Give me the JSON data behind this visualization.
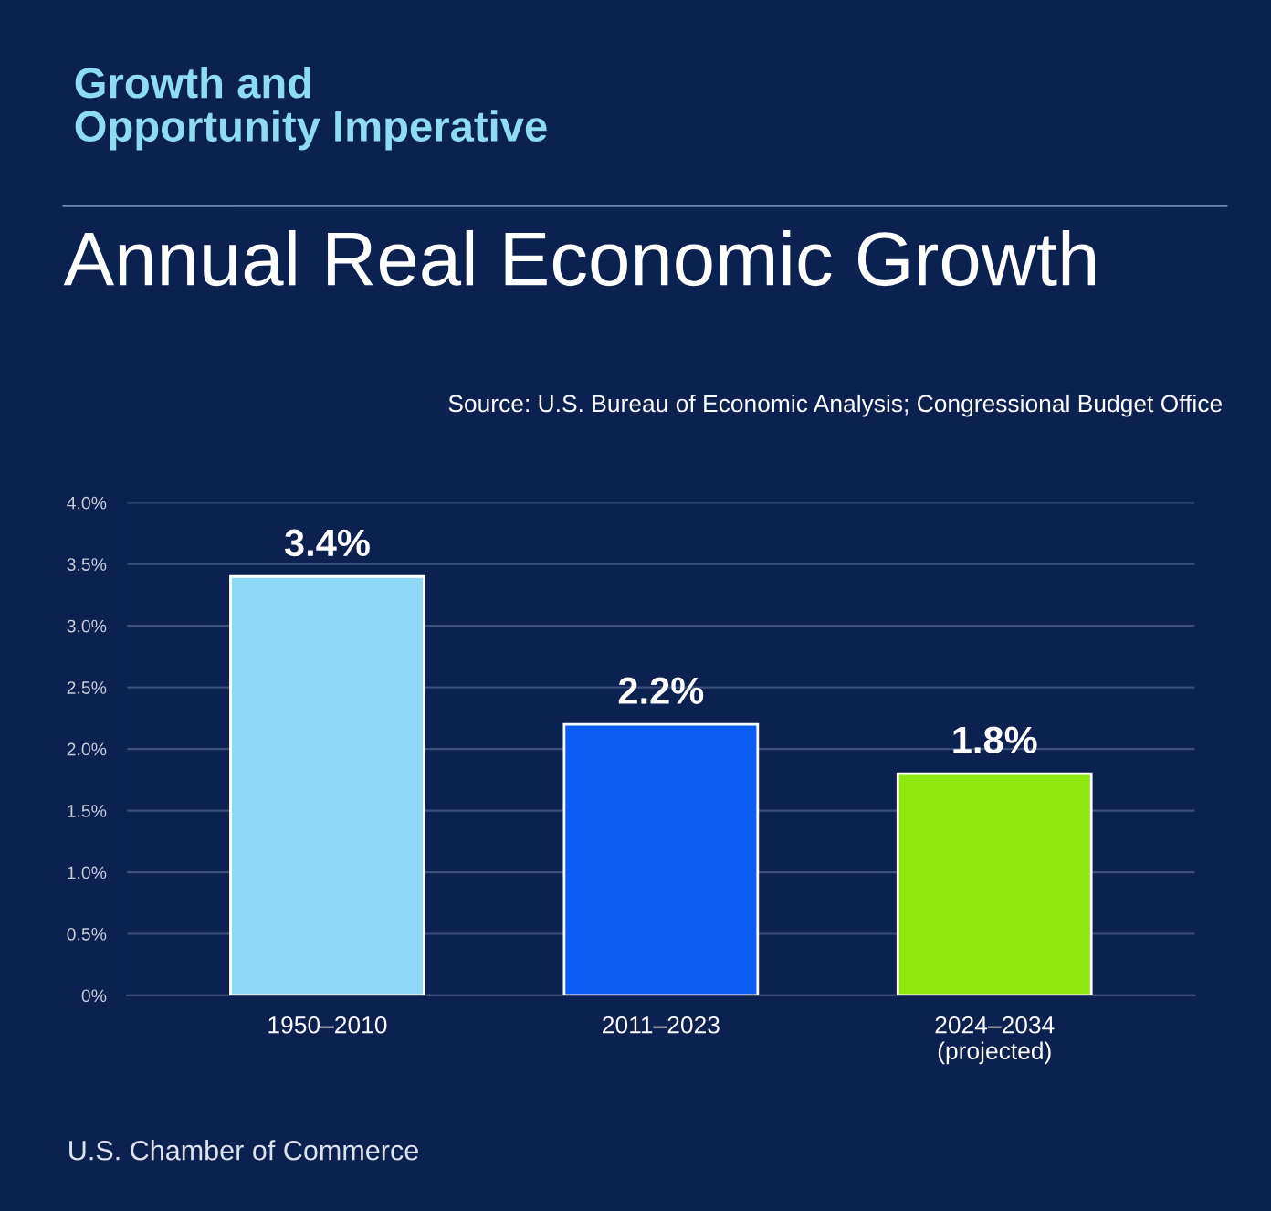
{
  "chart_data": {
    "type": "bar",
    "subtitle": "Growth and\nOpportunity Imperative",
    "title": "Annual Real Economic Growth",
    "annotations": [
      "Source: U.S. Bureau of Economic Analysis; Congressional Budget Office",
      "U.S. Chamber of Commerce"
    ],
    "categories": [
      "1950–2010",
      "2011–2023",
      "2024–2034\n(projected)"
    ],
    "values": [
      3.4,
      2.2,
      1.8
    ],
    "colors": [
      "#8ed8f8",
      "#0a5cf2",
      "#8ee810"
    ],
    "value_labels": [
      "3.4%",
      "2.2%",
      "1.8%"
    ],
    "ylim": [
      0,
      4.0
    ],
    "yticks": [
      {
        "value": 0,
        "label": "0%"
      },
      {
        "value": 0.5,
        "label": "0.5%"
      },
      {
        "value": 1.0,
        "label": "1.0%"
      },
      {
        "value": 1.5,
        "label": "1.5%"
      },
      {
        "value": 2.0,
        "label": "2.0%"
      },
      {
        "value": 2.5,
        "label": "2.5%"
      },
      {
        "value": 3.0,
        "label": "3.0%"
      },
      {
        "value": 3.5,
        "label": "3.5%"
      },
      {
        "value": 4.0,
        "label": "4.0%"
      }
    ],
    "grid": "y"
  }
}
